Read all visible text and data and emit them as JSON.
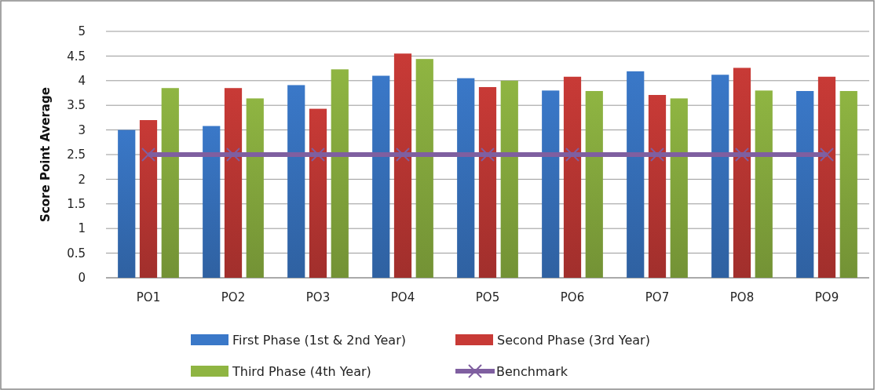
{
  "chart_data": {
    "type": "bar",
    "ylabel": "Score Point Average",
    "categories": [
      "PO1",
      "PO2",
      "PO3",
      "PO4",
      "PO5",
      "PO6",
      "PO7",
      "PO8",
      "PO9"
    ],
    "series": [
      {
        "name": "First Phase (1st & 2nd Year)",
        "color": "#3a78c8",
        "values": [
          3.0,
          3.08,
          3.91,
          4.1,
          4.05,
          3.8,
          4.19,
          4.12,
          3.79
        ]
      },
      {
        "name": "Second Phase (3rd Year)",
        "color": "#c83a36",
        "values": [
          3.2,
          3.85,
          3.43,
          4.55,
          3.87,
          4.08,
          3.71,
          4.26,
          4.08
        ]
      },
      {
        "name": "Third Phase (4th Year)",
        "color": "#8fb542",
        "values": [
          3.85,
          3.64,
          4.23,
          4.44,
          4.0,
          3.79,
          3.64,
          3.8,
          3.79
        ]
      },
      {
        "name": "Benchmark",
        "type": "line",
        "color": "#7f5fa0",
        "marker": "cross",
        "values": [
          2.5,
          2.5,
          2.5,
          2.5,
          2.5,
          2.5,
          2.5,
          2.5,
          2.5
        ]
      }
    ],
    "ylim": [
      0,
      5
    ],
    "yticks": [
      0,
      0.5,
      1,
      1.5,
      2,
      2.5,
      3,
      3.5,
      4,
      4.5,
      5
    ],
    "grid": "y",
    "legend": "bottom"
  }
}
